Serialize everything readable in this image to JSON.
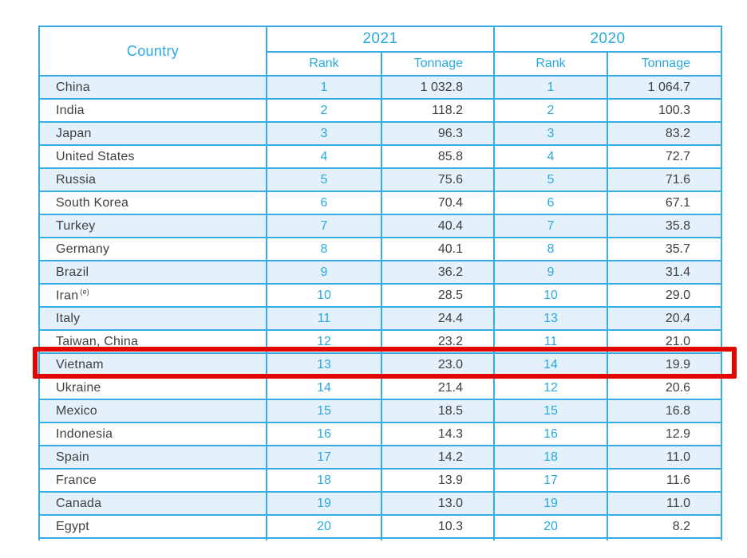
{
  "chart_data": {
    "type": "table",
    "title": "",
    "header": {
      "country": "Country",
      "years": [
        "2021",
        "2020"
      ],
      "sub": [
        "Rank",
        "Tonnage",
        "Rank",
        "Tonnage"
      ]
    },
    "rows": [
      {
        "country": "China",
        "r21": "1",
        "t21": "1 032.8",
        "r20": "1",
        "t20": "1 064.7"
      },
      {
        "country": "India",
        "r21": "2",
        "t21": "118.2",
        "r20": "2",
        "t20": "100.3"
      },
      {
        "country": "Japan",
        "r21": "3",
        "t21": "96.3",
        "r20": "3",
        "t20": "83.2"
      },
      {
        "country": "United States",
        "r21": "4",
        "t21": "85.8",
        "r20": "4",
        "t20": "72.7"
      },
      {
        "country": "Russia",
        "r21": "5",
        "t21": "75.6",
        "r20": "5",
        "t20": "71.6"
      },
      {
        "country": "South Korea",
        "r21": "6",
        "t21": "70.4",
        "r20": "6",
        "t20": "67.1"
      },
      {
        "country": "Turkey",
        "r21": "7",
        "t21": "40.4",
        "r20": "7",
        "t20": "35.8"
      },
      {
        "country": "Germany",
        "r21": "8",
        "t21": "40.1",
        "r20": "8",
        "t20": "35.7"
      },
      {
        "country": "Brazil",
        "r21": "9",
        "t21": "36.2",
        "r20": "9",
        "t20": "31.4"
      },
      {
        "country": "Iran",
        "note": "(e)",
        "r21": "10",
        "t21": "28.5",
        "r20": "10",
        "t20": "29.0"
      },
      {
        "country": "Italy",
        "r21": "11",
        "t21": "24.4",
        "r20": "13",
        "t20": "20.4"
      },
      {
        "country": "Taiwan, China",
        "r21": "12",
        "t21": "23.2",
        "r20": "11",
        "t20": "21.0"
      },
      {
        "country": "Vietnam",
        "r21": "13",
        "t21": "23.0",
        "r20": "14",
        "t20": "19.9",
        "highlighted": true
      },
      {
        "country": "Ukraine",
        "r21": "14",
        "t21": "21.4",
        "r20": "12",
        "t20": "20.6"
      },
      {
        "country": "Mexico",
        "r21": "15",
        "t21": "18.5",
        "r20": "15",
        "t20": "16.8"
      },
      {
        "country": "Indonesia",
        "r21": "16",
        "t21": "14.3",
        "r20": "16",
        "t20": "12.9"
      },
      {
        "country": "Spain",
        "r21": "17",
        "t21": "14.2",
        "r20": "18",
        "t20": "11.0"
      },
      {
        "country": "France",
        "r21": "18",
        "t21": "13.9",
        "r20": "17",
        "t20": "11.6"
      },
      {
        "country": "Canada",
        "r21": "19",
        "t21": "13.0",
        "r20": "19",
        "t20": "11.0"
      },
      {
        "country": "Egypt",
        "r21": "20",
        "t21": "10.3",
        "r20": "20",
        "t20": "8.2"
      }
    ],
    "highlight": {
      "country": "Vietnam",
      "style": "red-outline",
      "color": "#e10600"
    },
    "layout_hints": {
      "alternating_row_color": "#e4f0fa",
      "border_color": "#35ade4",
      "header_text_color": "#29a9e1",
      "body_text_color": "#3f3f41"
    }
  }
}
